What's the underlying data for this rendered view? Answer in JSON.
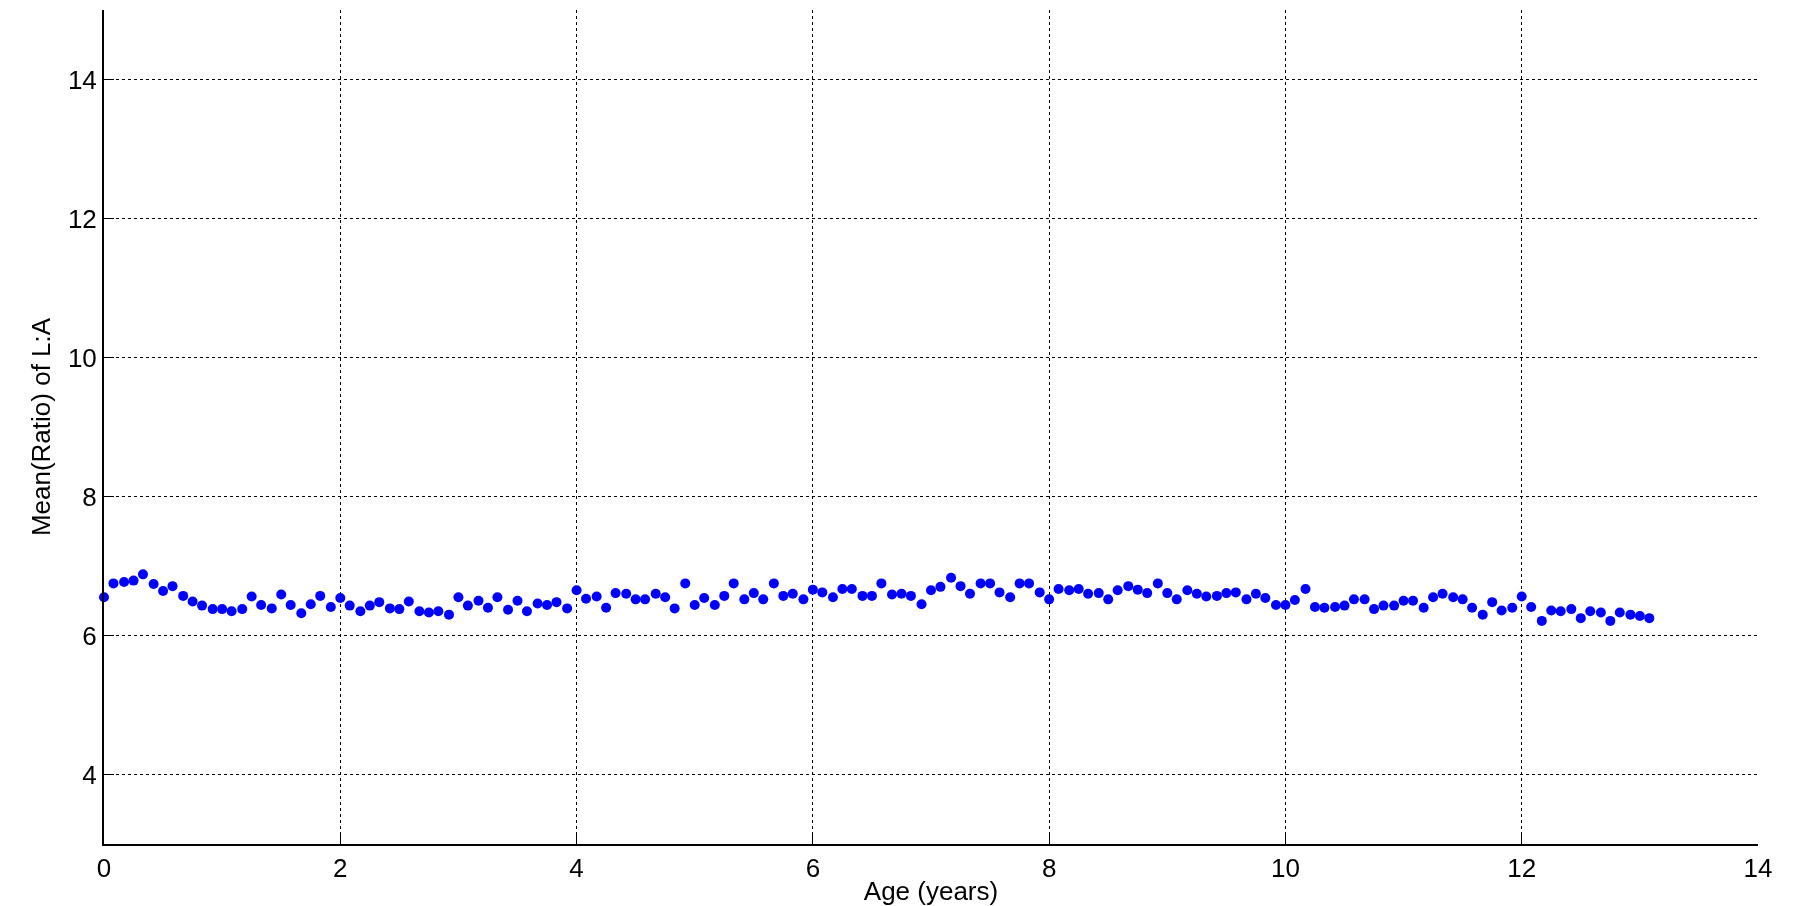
{
  "chart_data": {
    "type": "scatter",
    "xlabel": "Age (years)",
    "ylabel": "Mean(Ratio) of L:A",
    "xlim": [
      0,
      14
    ],
    "xticks": [
      0,
      2,
      4,
      6,
      8,
      10,
      12,
      14
    ],
    "ylim": [
      3,
      15
    ],
    "yticks": [
      4,
      6,
      8,
      10,
      12,
      14
    ],
    "grid": true,
    "marker": "circle",
    "x": [
      0,
      0.08,
      0.17,
      0.25,
      0.33,
      0.42,
      0.5,
      0.58,
      0.67,
      0.75,
      0.83,
      0.92,
      1,
      1.08,
      1.17,
      1.25,
      1.33,
      1.42,
      1.5,
      1.58,
      1.67,
      1.75,
      1.83,
      1.92,
      2,
      2.08,
      2.17,
      2.25,
      2.33,
      2.42,
      2.5,
      2.58,
      2.67,
      2.75,
      2.83,
      2.92,
      3,
      3.08,
      3.17,
      3.25,
      3.33,
      3.42,
      3.5,
      3.58,
      3.67,
      3.75,
      3.83,
      3.92,
      4,
      4.08,
      4.17,
      4.25,
      4.33,
      4.42,
      4.5,
      4.58,
      4.67,
      4.75,
      4.83,
      4.92,
      5,
      5.08,
      5.17,
      5.25,
      5.33,
      5.42,
      5.5,
      5.58,
      5.67,
      5.75,
      5.83,
      5.92,
      6,
      6.08,
      6.17,
      6.25,
      6.33,
      6.42,
      6.5,
      6.58,
      6.67,
      6.75,
      6.83,
      6.92,
      7,
      7.08,
      7.17,
      7.25,
      7.33,
      7.42,
      7.5,
      7.58,
      7.67,
      7.75,
      7.83,
      7.92,
      8,
      8.08,
      8.17,
      8.25,
      8.33,
      8.42,
      8.5,
      8.58,
      8.67,
      8.75,
      8.83,
      8.92,
      9,
      9.08,
      9.17,
      9.25,
      9.33,
      9.42,
      9.5,
      9.58,
      9.67,
      9.75,
      9.83,
      9.92,
      10,
      10.08,
      10.17,
      10.25,
      10.33,
      10.42,
      10.5,
      10.58,
      10.67,
      10.75,
      10.83,
      10.92,
      11,
      11.08,
      11.17,
      11.25,
      11.33,
      11.42,
      11.5,
      11.58,
      11.67,
      11.75,
      11.83,
      11.92,
      12,
      12.08,
      12.17,
      12.25,
      12.33,
      12.42,
      12.5,
      12.58,
      12.67,
      12.75,
      12.83,
      12.92,
      13,
      13.08
    ],
    "series": [
      {
        "color": "#0000ff",
        "values": [
          6.55,
          6.75,
          6.77,
          6.79,
          6.88,
          6.74,
          6.64,
          6.71,
          6.57,
          6.49,
          6.43,
          6.38,
          6.38,
          6.35,
          6.38,
          6.56,
          6.44,
          6.39,
          6.59,
          6.44,
          6.32,
          6.45,
          6.57,
          6.41,
          6.54,
          6.43,
          6.35,
          6.43,
          6.48,
          6.39,
          6.38,
          6.49,
          6.35,
          6.33,
          6.35,
          6.3,
          6.55,
          6.43,
          6.5,
          6.4,
          6.55,
          6.37,
          6.5,
          6.35,
          6.46,
          6.44,
          6.48,
          6.39,
          6.65,
          6.53,
          6.56,
          6.4,
          6.61,
          6.6,
          6.52,
          6.52,
          6.6,
          6.55,
          6.39,
          6.75,
          6.44,
          6.54,
          6.44,
          6.57,
          6.75,
          6.52,
          6.61,
          6.52,
          6.75,
          6.57,
          6.6,
          6.52,
          6.66,
          6.62,
          6.55,
          6.67,
          6.67,
          6.57,
          6.57,
          6.75,
          6.59,
          6.6,
          6.57,
          6.45,
          6.65,
          6.7,
          6.83,
          6.71,
          6.6,
          6.75,
          6.75,
          6.62,
          6.55,
          6.75,
          6.75,
          6.62,
          6.52,
          6.67,
          6.65,
          6.67,
          6.6,
          6.61,
          6.52,
          6.65,
          6.71,
          6.66,
          6.61,
          6.75,
          6.61,
          6.52,
          6.65,
          6.6,
          6.56,
          6.57,
          6.61,
          6.62,
          6.52,
          6.6,
          6.54,
          6.44,
          6.44,
          6.51,
          6.67,
          6.41,
          6.4,
          6.41,
          6.43,
          6.52,
          6.52,
          6.38,
          6.43,
          6.43,
          6.5,
          6.5,
          6.4,
          6.55,
          6.6,
          6.55,
          6.52,
          6.4,
          6.3,
          6.48,
          6.36,
          6.4,
          6.56,
          6.41,
          6.21,
          6.36,
          6.35,
          6.38,
          6.25,
          6.35,
          6.33,
          6.21,
          6.33,
          6.3,
          6.28,
          6.25
        ]
      }
    ]
  }
}
